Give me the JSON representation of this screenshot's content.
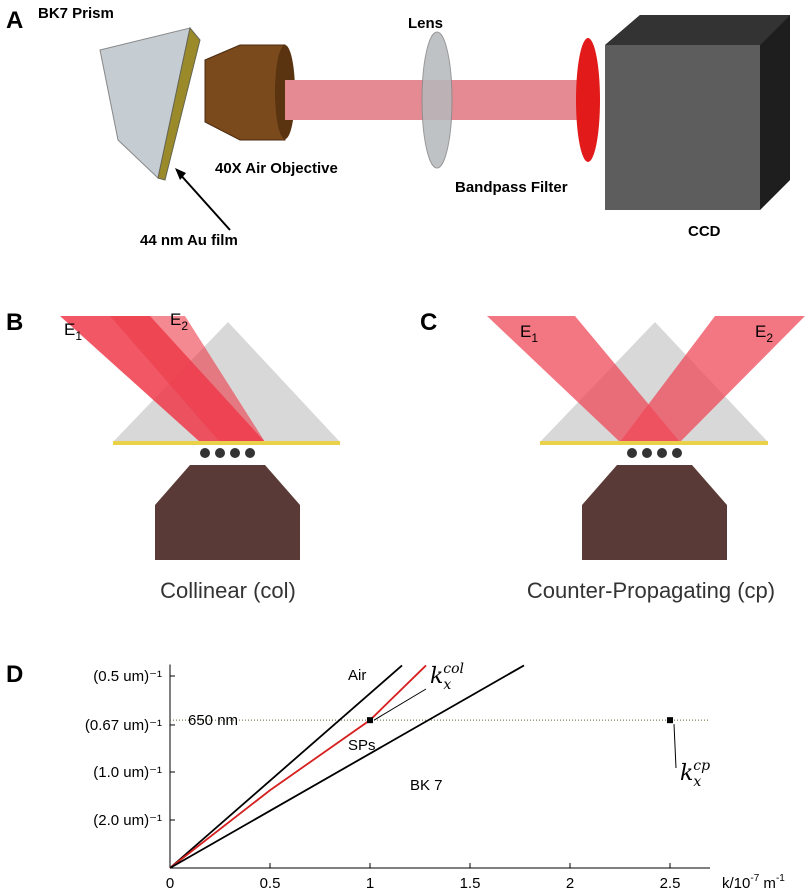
{
  "panels": {
    "A": {
      "label": "A",
      "prism": "BK7 Prism",
      "objective": "40X Air Objective",
      "film": "44 nm Au film",
      "lens": "Lens",
      "filter": "Bandpass Filter",
      "ccd": "CCD"
    },
    "B": {
      "label": "B",
      "beam1": {
        "text": "E",
        "sub": "1"
      },
      "beam2": {
        "text": "E",
        "sub": "2"
      },
      "caption": "Collinear (col)"
    },
    "C": {
      "label": "C",
      "beam1": {
        "text": "E",
        "sub": "1"
      },
      "beam2": {
        "text": "E",
        "sub": "2"
      },
      "caption": "Counter-Propagating (cp)"
    }
  },
  "chart_data": {
    "type": "line",
    "label": "D",
    "xlabel": {
      "text": "k/10",
      "sup1": "-7",
      "mid": " m",
      "sup2": "-1"
    },
    "xlim": [
      0,
      2.7
    ],
    "xticks": [
      0,
      0.5,
      1,
      1.5,
      2,
      2.5
    ],
    "ylim": [
      0,
      2.12
    ],
    "yticks": [
      {
        "value": 0.5,
        "label": "(2.0 um)⁻¹"
      },
      {
        "value": 1,
        "label": "(1.0 um)⁻¹"
      },
      {
        "value": 1.49,
        "label": "(0.67 um)⁻¹"
      },
      {
        "value": 2,
        "label": "(0.5 um)⁻¹"
      }
    ],
    "series": [
      {
        "name": "Air",
        "color": "#000000",
        "x": [
          0,
          1.16
        ],
        "values": [
          0,
          2.11
        ]
      },
      {
        "name": "SPs",
        "color": "#d62020",
        "x": [
          0,
          0.5,
          1.0,
          1.28
        ],
        "values": [
          0,
          0.81,
          1.54,
          2.11
        ]
      },
      {
        "name": "BK 7",
        "color": "#000000",
        "x": [
          0,
          1.77
        ],
        "values": [
          0,
          2.11
        ]
      }
    ],
    "wavelength_line": {
      "label": "650 nm",
      "value": 1.54
    },
    "points": [
      {
        "x": 1.0,
        "y": 1.54,
        "k": "k",
        "sub": "x",
        "sup": "col"
      },
      {
        "x": 2.5,
        "y": 1.54,
        "k": "k",
        "sub": "x",
        "sup": "cp"
      }
    ]
  }
}
